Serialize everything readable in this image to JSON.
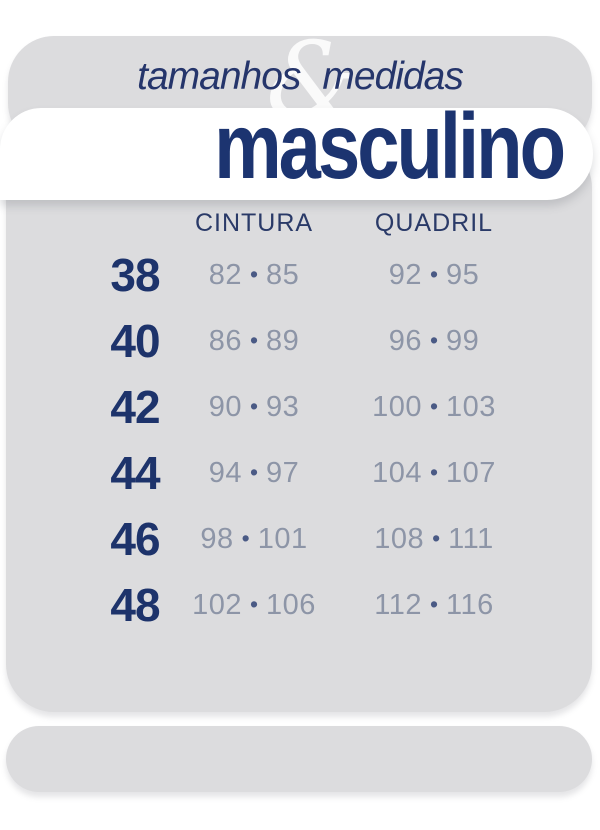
{
  "header": {
    "word_left": "tamanhos",
    "ampersand": "&",
    "word_right": "medidas"
  },
  "section": {
    "title": "masculino"
  },
  "table": {
    "col_headers": [
      "CINTURA",
      "QUADRIL"
    ],
    "separator": "•",
    "rows": [
      {
        "size": "38",
        "cintura": [
          "82",
          "85"
        ],
        "quadril": [
          "92",
          "95"
        ]
      },
      {
        "size": "40",
        "cintura": [
          "86",
          "89"
        ],
        "quadril": [
          "96",
          "99"
        ]
      },
      {
        "size": "42",
        "cintura": [
          "90",
          "93"
        ],
        "quadril": [
          "100",
          "103"
        ]
      },
      {
        "size": "44",
        "cintura": [
          "94",
          "97"
        ],
        "quadril": [
          "104",
          "107"
        ]
      },
      {
        "size": "46",
        "cintura": [
          "98",
          "101"
        ],
        "quadril": [
          "108",
          "111"
        ]
      },
      {
        "size": "48",
        "cintura": [
          "102",
          "106"
        ],
        "quadril": [
          "112",
          "116"
        ]
      }
    ]
  },
  "colors": {
    "panel_gray": "#dcdcde",
    "navy": "#1d336b",
    "title_navy": "#1c3470",
    "muted_value_gray": "#8d95a7",
    "dot_navy": "#4a5a85",
    "background": "#ffffff",
    "ampersand_white": "#f5f5f7"
  }
}
